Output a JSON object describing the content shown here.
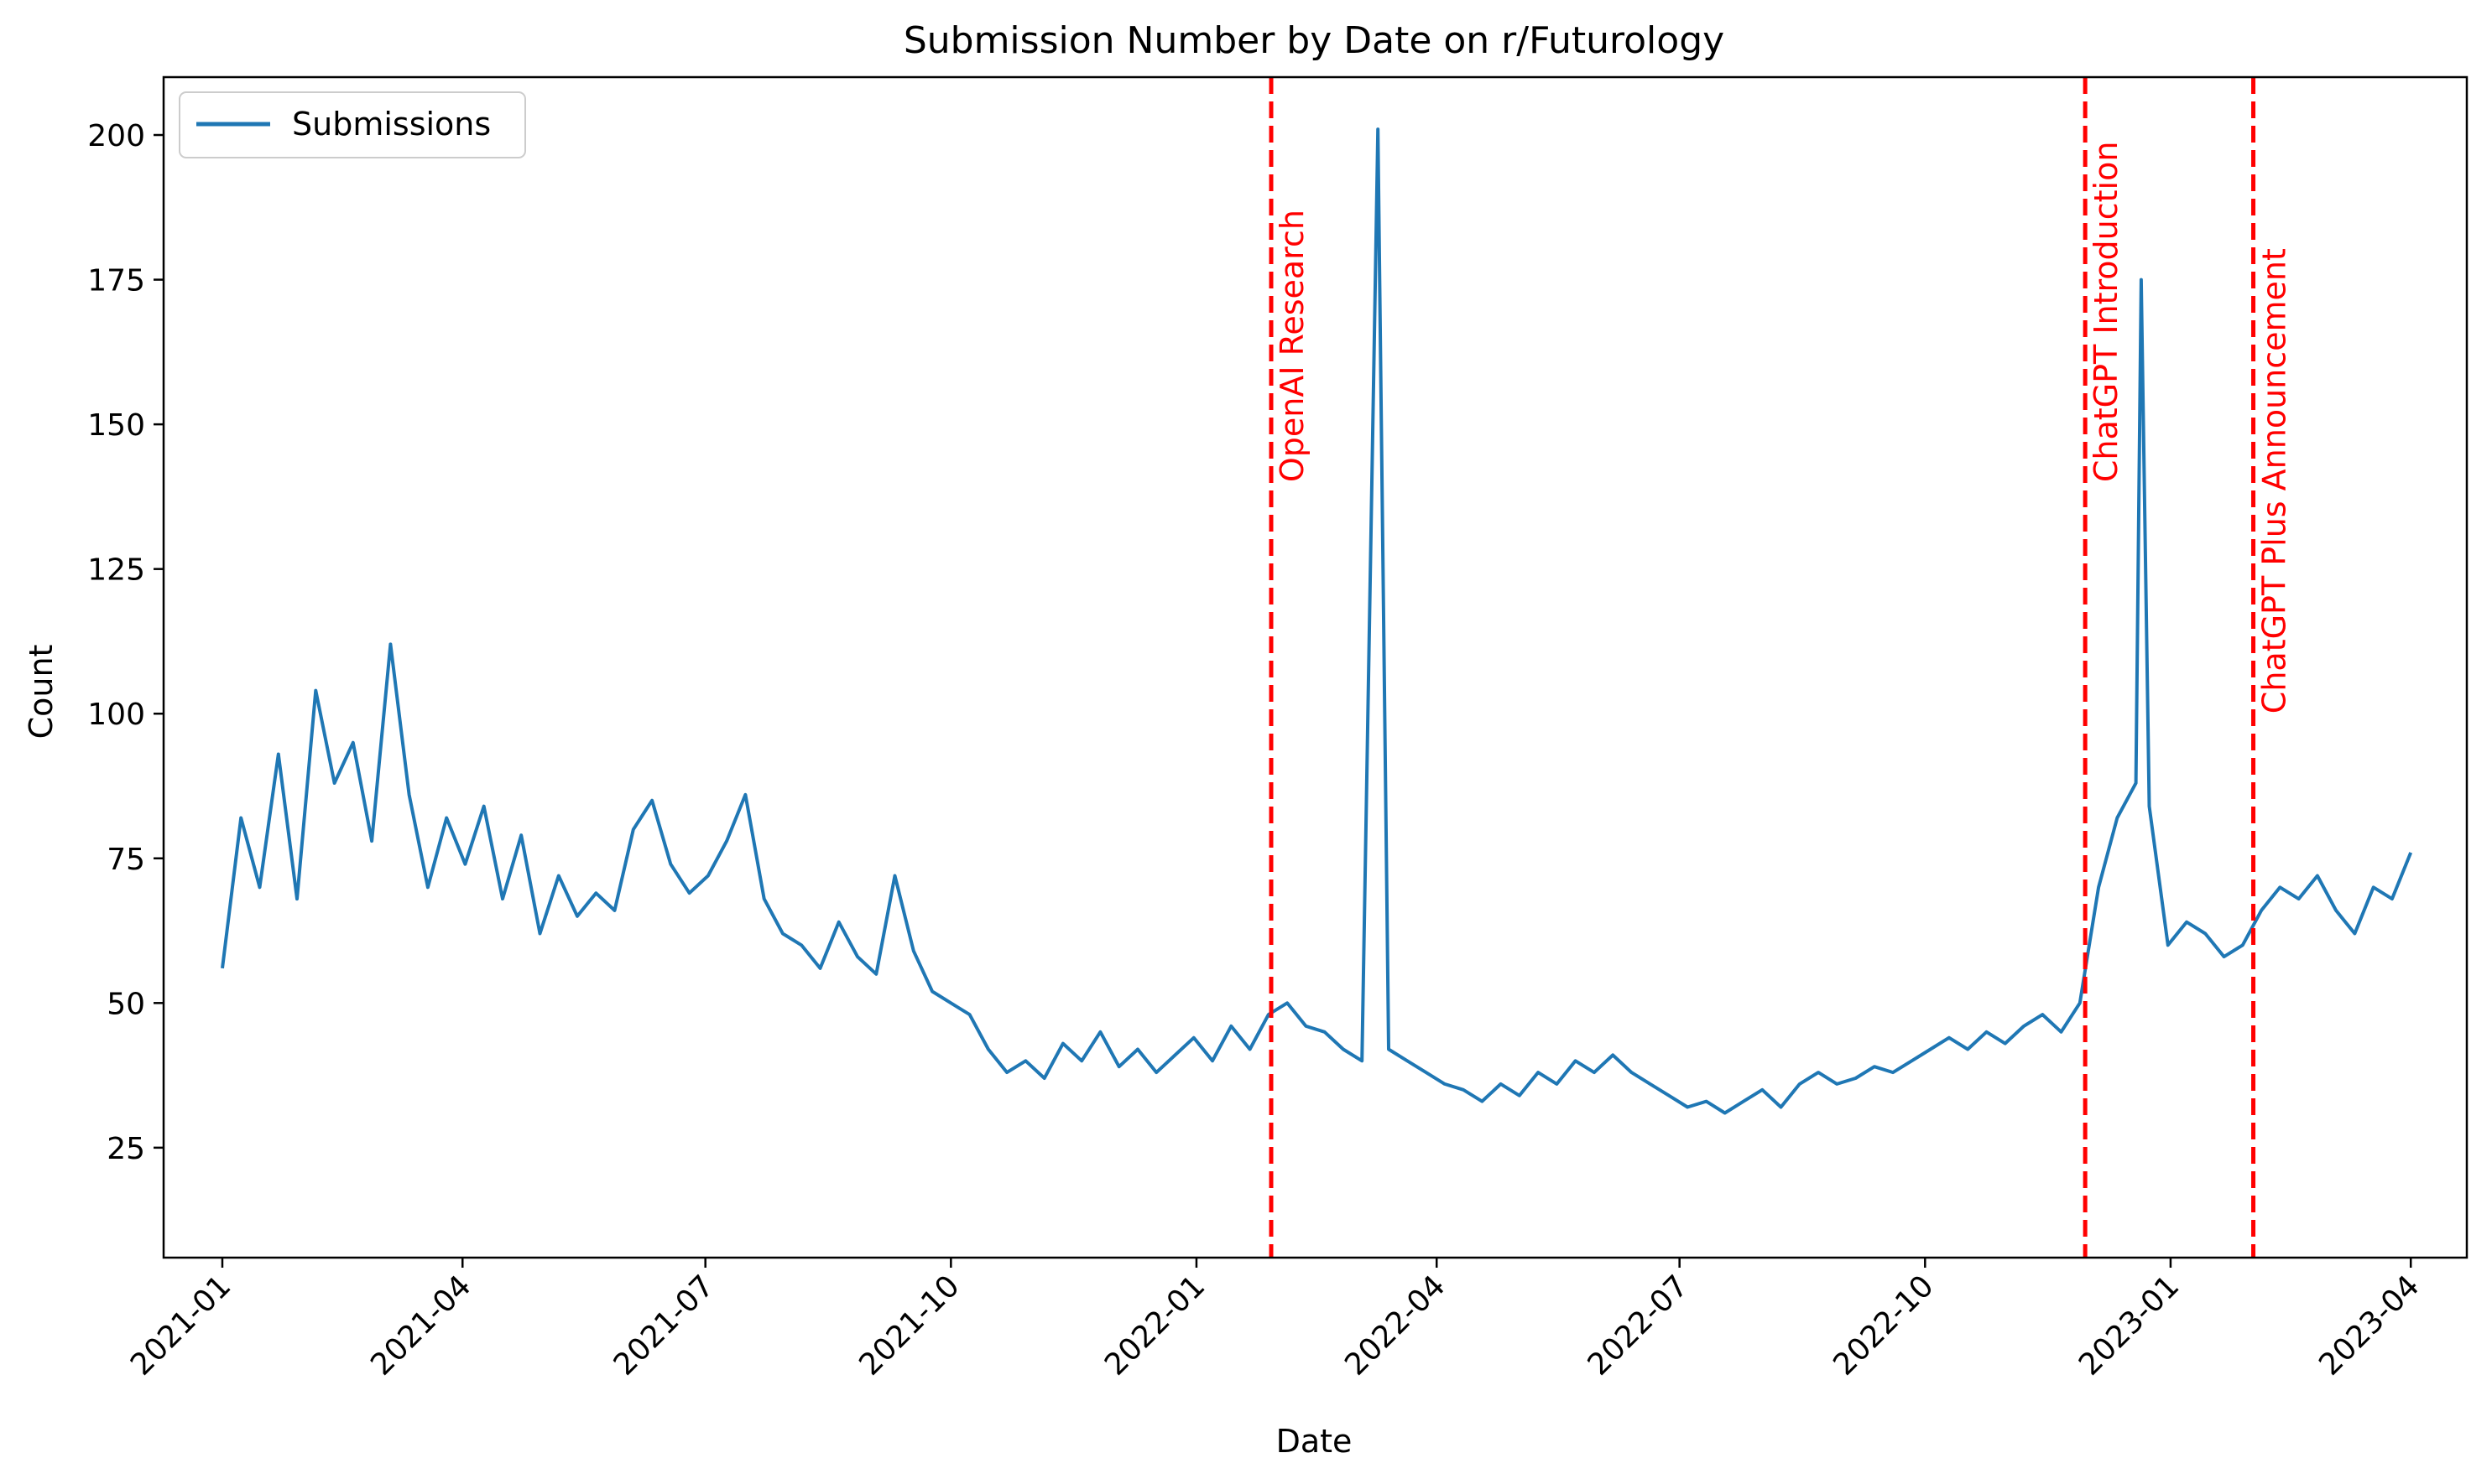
{
  "chart_data": {
    "type": "line",
    "title": "Submission Number by Date on r/Futurology",
    "xlabel": "Date",
    "ylabel": "Count",
    "xlim": [
      "2020-12-10",
      "2023-04-22"
    ],
    "ylim": [
      6,
      210
    ],
    "xticks": [
      "2021-01",
      "2021-04",
      "2021-07",
      "2021-10",
      "2022-01",
      "2022-04",
      "2022-07",
      "2022-10",
      "2023-01",
      "2023-04"
    ],
    "yticks": [
      25,
      50,
      75,
      100,
      125,
      150,
      175,
      200
    ],
    "grid": false,
    "legend": {
      "position": "upper-left",
      "label": "Submissions"
    },
    "series": [
      {
        "name": "Submissions",
        "color": "#1f77b4",
        "points": [
          [
            "2021-01-01",
            56
          ],
          [
            "2021-01-08",
            82
          ],
          [
            "2021-01-15",
            70
          ],
          [
            "2021-01-22",
            93
          ],
          [
            "2021-01-29",
            68
          ],
          [
            "2021-02-05",
            104
          ],
          [
            "2021-02-12",
            88
          ],
          [
            "2021-02-19",
            95
          ],
          [
            "2021-02-26",
            78
          ],
          [
            "2021-03-05",
            112
          ],
          [
            "2021-03-12",
            86
          ],
          [
            "2021-03-19",
            70
          ],
          [
            "2021-03-26",
            82
          ],
          [
            "2021-04-02",
            74
          ],
          [
            "2021-04-09",
            84
          ],
          [
            "2021-04-16",
            68
          ],
          [
            "2021-04-23",
            79
          ],
          [
            "2021-04-30",
            62
          ],
          [
            "2021-05-07",
            72
          ],
          [
            "2021-05-14",
            65
          ],
          [
            "2021-05-21",
            69
          ],
          [
            "2021-05-28",
            66
          ],
          [
            "2021-06-04",
            80
          ],
          [
            "2021-06-11",
            85
          ],
          [
            "2021-06-18",
            74
          ],
          [
            "2021-06-25",
            69
          ],
          [
            "2021-07-02",
            72
          ],
          [
            "2021-07-09",
            78
          ],
          [
            "2021-07-16",
            86
          ],
          [
            "2021-07-23",
            68
          ],
          [
            "2021-07-30",
            62
          ],
          [
            "2021-08-06",
            60
          ],
          [
            "2021-08-13",
            56
          ],
          [
            "2021-08-20",
            64
          ],
          [
            "2021-08-27",
            58
          ],
          [
            "2021-09-03",
            55
          ],
          [
            "2021-09-10",
            72
          ],
          [
            "2021-09-17",
            59
          ],
          [
            "2021-09-24",
            52
          ],
          [
            "2021-10-01",
            50
          ],
          [
            "2021-10-08",
            48
          ],
          [
            "2021-10-15",
            42
          ],
          [
            "2021-10-22",
            38
          ],
          [
            "2021-10-29",
            40
          ],
          [
            "2021-11-05",
            37
          ],
          [
            "2021-11-12",
            43
          ],
          [
            "2021-11-19",
            40
          ],
          [
            "2021-11-26",
            45
          ],
          [
            "2021-12-03",
            39
          ],
          [
            "2021-12-10",
            42
          ],
          [
            "2021-12-17",
            38
          ],
          [
            "2021-12-24",
            41
          ],
          [
            "2021-12-31",
            44
          ],
          [
            "2022-01-07",
            40
          ],
          [
            "2022-01-14",
            46
          ],
          [
            "2022-01-21",
            42
          ],
          [
            "2022-01-28",
            48
          ],
          [
            "2022-02-04",
            50
          ],
          [
            "2022-02-11",
            46
          ],
          [
            "2022-02-18",
            45
          ],
          [
            "2022-02-25",
            42
          ],
          [
            "2022-03-04",
            40
          ],
          [
            "2022-03-10",
            201
          ],
          [
            "2022-03-14",
            42
          ],
          [
            "2022-03-21",
            40
          ],
          [
            "2022-03-28",
            38
          ],
          [
            "2022-04-04",
            36
          ],
          [
            "2022-04-11",
            35
          ],
          [
            "2022-04-18",
            33
          ],
          [
            "2022-04-25",
            36
          ],
          [
            "2022-05-02",
            34
          ],
          [
            "2022-05-09",
            38
          ],
          [
            "2022-05-16",
            36
          ],
          [
            "2022-05-23",
            40
          ],
          [
            "2022-05-30",
            38
          ],
          [
            "2022-06-06",
            41
          ],
          [
            "2022-06-13",
            38
          ],
          [
            "2022-06-20",
            36
          ],
          [
            "2022-06-27",
            34
          ],
          [
            "2022-07-04",
            32
          ],
          [
            "2022-07-11",
            33
          ],
          [
            "2022-07-18",
            31
          ],
          [
            "2022-07-25",
            33
          ],
          [
            "2022-08-01",
            35
          ],
          [
            "2022-08-08",
            32
          ],
          [
            "2022-08-15",
            36
          ],
          [
            "2022-08-22",
            38
          ],
          [
            "2022-08-29",
            36
          ],
          [
            "2022-09-05",
            37
          ],
          [
            "2022-09-12",
            39
          ],
          [
            "2022-09-19",
            38
          ],
          [
            "2022-09-26",
            40
          ],
          [
            "2022-10-03",
            42
          ],
          [
            "2022-10-10",
            44
          ],
          [
            "2022-10-17",
            42
          ],
          [
            "2022-10-24",
            45
          ],
          [
            "2022-10-31",
            43
          ],
          [
            "2022-11-07",
            46
          ],
          [
            "2022-11-14",
            48
          ],
          [
            "2022-11-21",
            45
          ],
          [
            "2022-11-28",
            50
          ],
          [
            "2022-12-05",
            70
          ],
          [
            "2022-12-12",
            82
          ],
          [
            "2022-12-19",
            88
          ],
          [
            "2022-12-21",
            175
          ],
          [
            "2022-12-24",
            84
          ],
          [
            "2022-12-31",
            60
          ],
          [
            "2023-01-07",
            64
          ],
          [
            "2023-01-14",
            62
          ],
          [
            "2023-01-21",
            58
          ],
          [
            "2023-01-28",
            60
          ],
          [
            "2023-02-04",
            66
          ],
          [
            "2023-02-11",
            70
          ],
          [
            "2023-02-18",
            68
          ],
          [
            "2023-02-25",
            72
          ],
          [
            "2023-03-04",
            66
          ],
          [
            "2023-03-11",
            62
          ],
          [
            "2023-03-18",
            70
          ],
          [
            "2023-03-25",
            68
          ],
          [
            "2023-04-01",
            76
          ]
        ]
      }
    ],
    "annotations": [
      {
        "date": "2022-01-29",
        "label": "OpenAI Research",
        "text_anchor_y": 140
      },
      {
        "date": "2022-11-30",
        "label": "ChatGPT Introduction",
        "text_anchor_y": 140
      },
      {
        "date": "2023-02-01",
        "label": "ChatGPT Plus Announcement",
        "text_anchor_y": 100
      }
    ],
    "colors": {
      "line": "#1f77b4",
      "annotation": "#ff0000",
      "axes": "#000000"
    }
  }
}
